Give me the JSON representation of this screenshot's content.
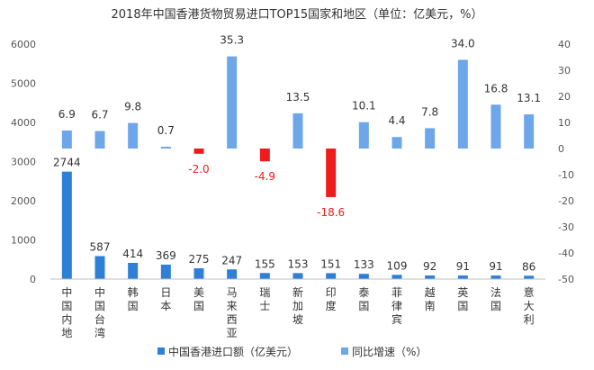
{
  "chart_data": {
    "type": "bar",
    "title": "2018年中国香港货物贸易进口TOP15国家和地区（单位：亿美元，%）",
    "categories": [
      "中国内地",
      "中国台湾",
      "韩国",
      "日本",
      "美国",
      "马来西亚",
      "瑞士",
      "新加坡",
      "印度",
      "泰国",
      "菲律宾",
      "越南",
      "英国",
      "法国",
      "意大利"
    ],
    "series": [
      {
        "name": "中国香港进口额（亿美元）",
        "axis": "left",
        "color": "#2e7fd6",
        "values": [
          2744,
          587,
          414,
          369,
          275,
          247,
          155,
          153,
          151,
          133,
          109,
          92,
          91,
          91,
          86
        ],
        "labels": [
          "2744",
          "587",
          "414",
          "369",
          "275",
          "247",
          "155",
          "153",
          "151",
          "133",
          "109",
          "92",
          "91",
          "91",
          "86"
        ]
      },
      {
        "name": "同比增速（%）",
        "axis": "right",
        "color": "#6ea6ea",
        "negative_color": "#ee1c1c",
        "values": [
          6.9,
          6.7,
          9.8,
          0.7,
          -2.0,
          35.3,
          -4.9,
          13.5,
          -18.6,
          10.1,
          4.4,
          7.8,
          34.0,
          16.8,
          13.1
        ],
        "labels": [
          "6.9",
          "6.7",
          "9.8",
          "0.7",
          "-2.0",
          "35.3",
          "-4.9",
          "13.5",
          "-18.6",
          "10.1",
          "4.4",
          "7.8",
          "34.0",
          "16.8",
          "13.1"
        ]
      }
    ],
    "y_left": {
      "min": 0,
      "max": 6000,
      "ticks": [
        0,
        1000,
        2000,
        3000,
        4000,
        5000,
        6000
      ]
    },
    "y_right": {
      "min": -50,
      "max": 40,
      "ticks": [
        -50,
        -40,
        -30,
        -20,
        -10,
        0,
        10,
        20,
        30,
        40
      ]
    },
    "grid": false,
    "legend": "bottom"
  }
}
